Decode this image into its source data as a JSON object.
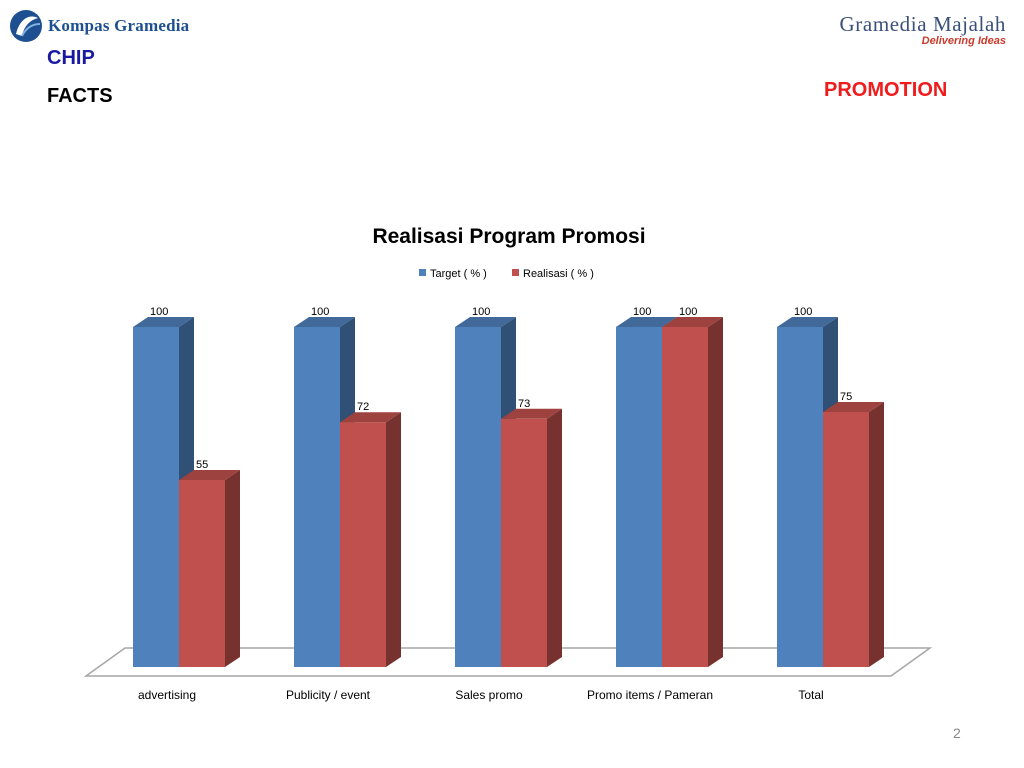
{
  "header": {
    "left_logo_text": "Kompas Gramedia",
    "right_logo_name": "Gramedia Majalah",
    "right_logo_tagline": "Delivering Ideas",
    "chip": "CHIP",
    "facts": "FACTS",
    "promotion": "PROMOTION"
  },
  "footer": {
    "page_number": "2"
  },
  "colors": {
    "target": "#4f81bd",
    "realisasi": "#c0504d"
  },
  "chart_data": {
    "type": "bar",
    "title": "Realisasi Program Promosi",
    "xlabel": "",
    "ylabel": "",
    "ylim": [
      0,
      100
    ],
    "grid": false,
    "legend_position": "top",
    "categories": [
      "advertising",
      "Publicity / event",
      "Sales promo",
      "Promo items / Pameran",
      "Total"
    ],
    "series": [
      {
        "name": "Target ( % )",
        "values": [
          100,
          100,
          100,
          100,
          100
        ]
      },
      {
        "name": "Realisasi ( % )",
        "values": [
          55,
          72,
          73,
          100,
          75
        ]
      }
    ]
  }
}
